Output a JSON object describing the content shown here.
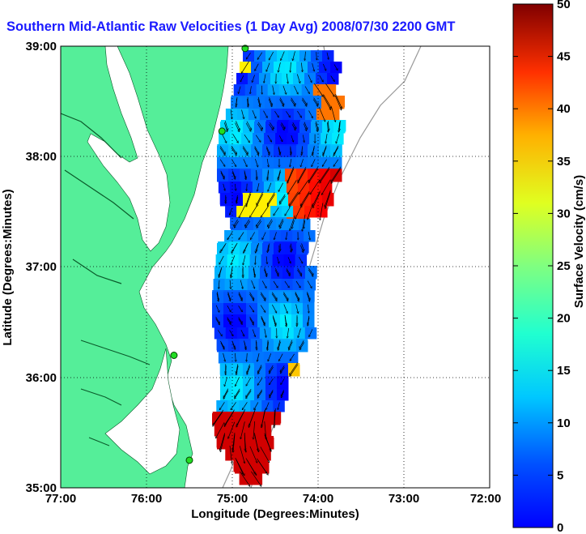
{
  "title": "Southern Mid-Atlantic Raw Velocities (1 Day Avg) 2008/07/30 2200 GMT",
  "map": {
    "xlabel": "Longitude (Degrees:Minutes)",
    "ylabel": "Latitude (Degrees:Minutes)",
    "lon_ticks": [
      "77:00",
      "76:00",
      "75:00",
      "74:00",
      "73:00",
      "72:00"
    ],
    "lat_ticks": [
      "39:00",
      "38:00",
      "37:00",
      "36:00",
      "35:00"
    ],
    "lon_range": [
      -77,
      -72
    ],
    "lat_range": [
      35,
      39
    ],
    "grid": "dotted",
    "land_color": "#55ee99",
    "water_color": "#ffffff"
  },
  "colorbar": {
    "label": "Surface Velocity (cm/s)",
    "ticks": [
      "0",
      "5",
      "10",
      "15",
      "20",
      "25",
      "30",
      "35",
      "40",
      "45",
      "50"
    ],
    "range": [
      0,
      50
    ],
    "colormap": "jet"
  },
  "stations": [
    {
      "lon": -74.85,
      "lat": 38.98
    },
    {
      "lon": -75.12,
      "lat": 38.23
    },
    {
      "lon": -75.68,
      "lat": 36.2
    },
    {
      "lon": -75.5,
      "lat": 35.25
    }
  ]
}
